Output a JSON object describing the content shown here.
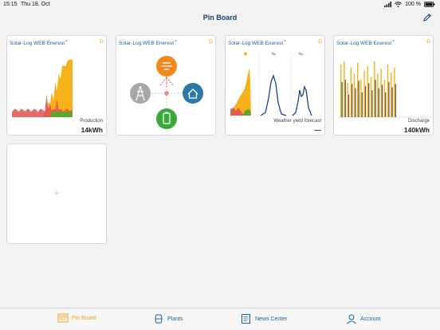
{
  "status": {
    "time": "15:15",
    "date": "Thu 18. Oct",
    "battery": "100 %"
  },
  "nav": {
    "title": "Pin Board"
  },
  "cards": [
    {
      "title": "Solar-Log WEB Enerest",
      "title_sup": "™",
      "tag": "D",
      "label": "Production",
      "value": "14kWh"
    },
    {
      "title": "Solar-Log WEB Enerest",
      "title_sup": "™",
      "tag": "D"
    },
    {
      "title": "Solar-Log WEB Enerest",
      "title_sup": "™",
      "tag": "D",
      "label": "Weather yield forecast",
      "value": "—"
    },
    {
      "title": "Solar-Log WEB Enerest",
      "title_sup": "™",
      "tag": "D",
      "label": "Discharge",
      "value": "140kWh"
    }
  ],
  "empty_card": {
    "symbol": "+"
  },
  "tabs": [
    {
      "label": "Pin Board",
      "icon": "pinboard-icon",
      "active": true
    },
    {
      "label": "Plants",
      "icon": "plants-icon",
      "active": false
    },
    {
      "label": "News Center",
      "icon": "news-icon",
      "active": false
    },
    {
      "label": "Account",
      "icon": "account-icon",
      "active": false
    }
  ],
  "colors": {
    "accent": "#f0a020",
    "brand": "#1a5f9e",
    "production": "#f5b21a",
    "consumption": "#e05050",
    "self": "#5aa832",
    "forecast": "#1f3f8f"
  }
}
